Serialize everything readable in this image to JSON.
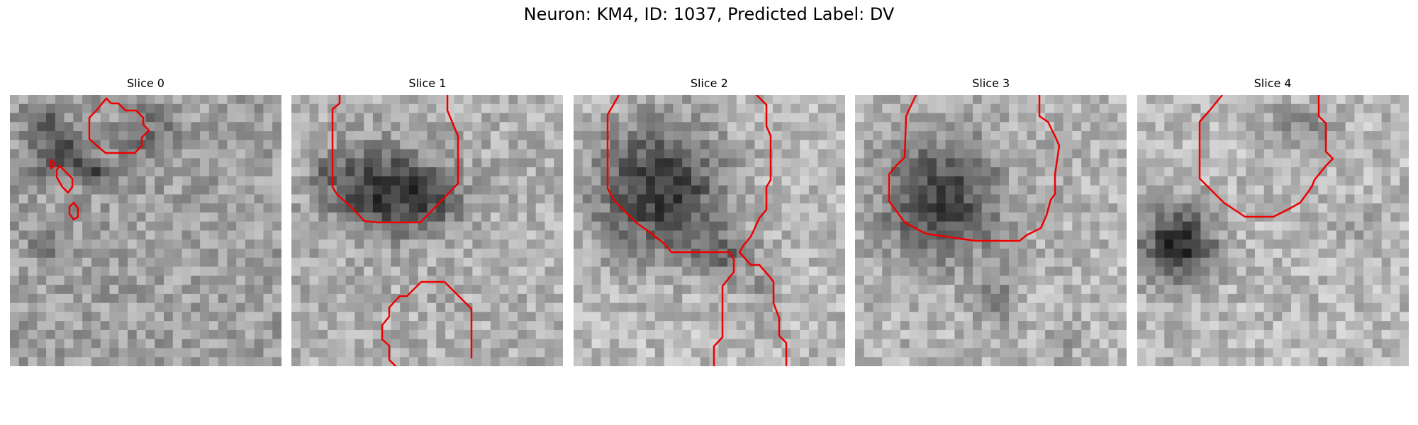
{
  "figure": {
    "title": "Neuron: KM4, ID: 1037, Predicted Label: DV",
    "contour_color": "#ee0000",
    "panels": [
      {
        "title": "Slice 0"
      },
      {
        "title": "Slice 1"
      },
      {
        "title": "Slice 2"
      },
      {
        "title": "Slice 3"
      },
      {
        "title": "Slice 4"
      }
    ]
  }
}
